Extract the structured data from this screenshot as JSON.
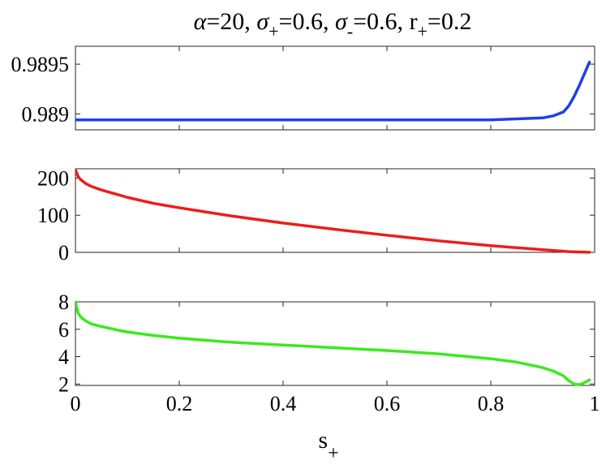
{
  "title": {
    "alpha_symbol": "α",
    "alpha_value": "=20, ",
    "sigma_plus_symbol": "σ",
    "sigma_plus_sub": "+",
    "sigma_plus_value": "=0.6, ",
    "sigma_minus_symbol": "σ",
    "sigma_minus_sub": "-",
    "sigma_minus_value": "=0.6, ",
    "r_plus_symbol": "r",
    "r_plus_sub": "+",
    "r_plus_value": "=0.2"
  },
  "xlabel": {
    "main": "s",
    "sub": "+"
  },
  "chart_data": [
    {
      "type": "line",
      "color": "#1f40e6",
      "xlim": [
        0,
        1
      ],
      "ylim": [
        0.98884,
        0.98968
      ],
      "yticks": [
        0.989,
        0.9895
      ],
      "ytick_labels": [
        "0.989",
        "0.9895"
      ],
      "x": [
        0,
        0.1,
        0.2,
        0.3,
        0.4,
        0.5,
        0.6,
        0.7,
        0.8,
        0.85,
        0.9,
        0.92,
        0.94,
        0.95,
        0.96,
        0.97,
        0.98,
        0.99
      ],
      "y": [
        0.98894,
        0.98894,
        0.98894,
        0.98894,
        0.98894,
        0.98894,
        0.98894,
        0.98894,
        0.98894,
        0.98895,
        0.98896,
        0.98898,
        0.98902,
        0.98908,
        0.98917,
        0.98928,
        0.9894,
        0.98952
      ]
    },
    {
      "type": "line",
      "color": "#ee1c1c",
      "xlim": [
        0,
        1
      ],
      "ylim": [
        0,
        225
      ],
      "yticks": [
        0,
        100,
        200
      ],
      "ytick_labels": [
        "0",
        "100",
        "200"
      ],
      "x": [
        0,
        0.005,
        0.01,
        0.02,
        0.03,
        0.05,
        0.08,
        0.1,
        0.15,
        0.2,
        0.3,
        0.4,
        0.5,
        0.6,
        0.7,
        0.8,
        0.9,
        0.95,
        0.98,
        0.99
      ],
      "y": [
        222,
        205,
        196,
        185,
        178,
        168,
        156,
        148,
        132,
        120,
        98,
        79,
        62,
        46,
        31,
        18,
        7,
        2,
        0.5,
        0.3
      ]
    },
    {
      "type": "line",
      "color": "#3bea1c",
      "xlim": [
        0,
        1
      ],
      "ylim": [
        1.9,
        8
      ],
      "yticks": [
        2,
        4,
        6,
        8
      ],
      "ytick_labels": [
        "2",
        "4",
        "6",
        "8"
      ],
      "x": [
        0,
        0.005,
        0.01,
        0.02,
        0.03,
        0.05,
        0.08,
        0.1,
        0.15,
        0.2,
        0.3,
        0.4,
        0.5,
        0.6,
        0.7,
        0.8,
        0.85,
        0.9,
        0.92,
        0.94,
        0.95,
        0.96,
        0.97,
        0.98,
        0.99
      ],
      "y": [
        8.0,
        7.2,
        6.9,
        6.6,
        6.4,
        6.2,
        5.95,
        5.8,
        5.55,
        5.35,
        5.05,
        4.85,
        4.65,
        4.45,
        4.2,
        3.85,
        3.6,
        3.2,
        2.95,
        2.6,
        2.25,
        2.0,
        1.95,
        2.1,
        2.3
      ]
    }
  ],
  "xaxis": {
    "xlim": [
      0,
      1
    ],
    "xticks": [
      0,
      0.2,
      0.4,
      0.6,
      0.8,
      1
    ],
    "xtick_labels": [
      "0",
      "0.2",
      "0.4",
      "0.6",
      "0.8",
      "1"
    ]
  }
}
